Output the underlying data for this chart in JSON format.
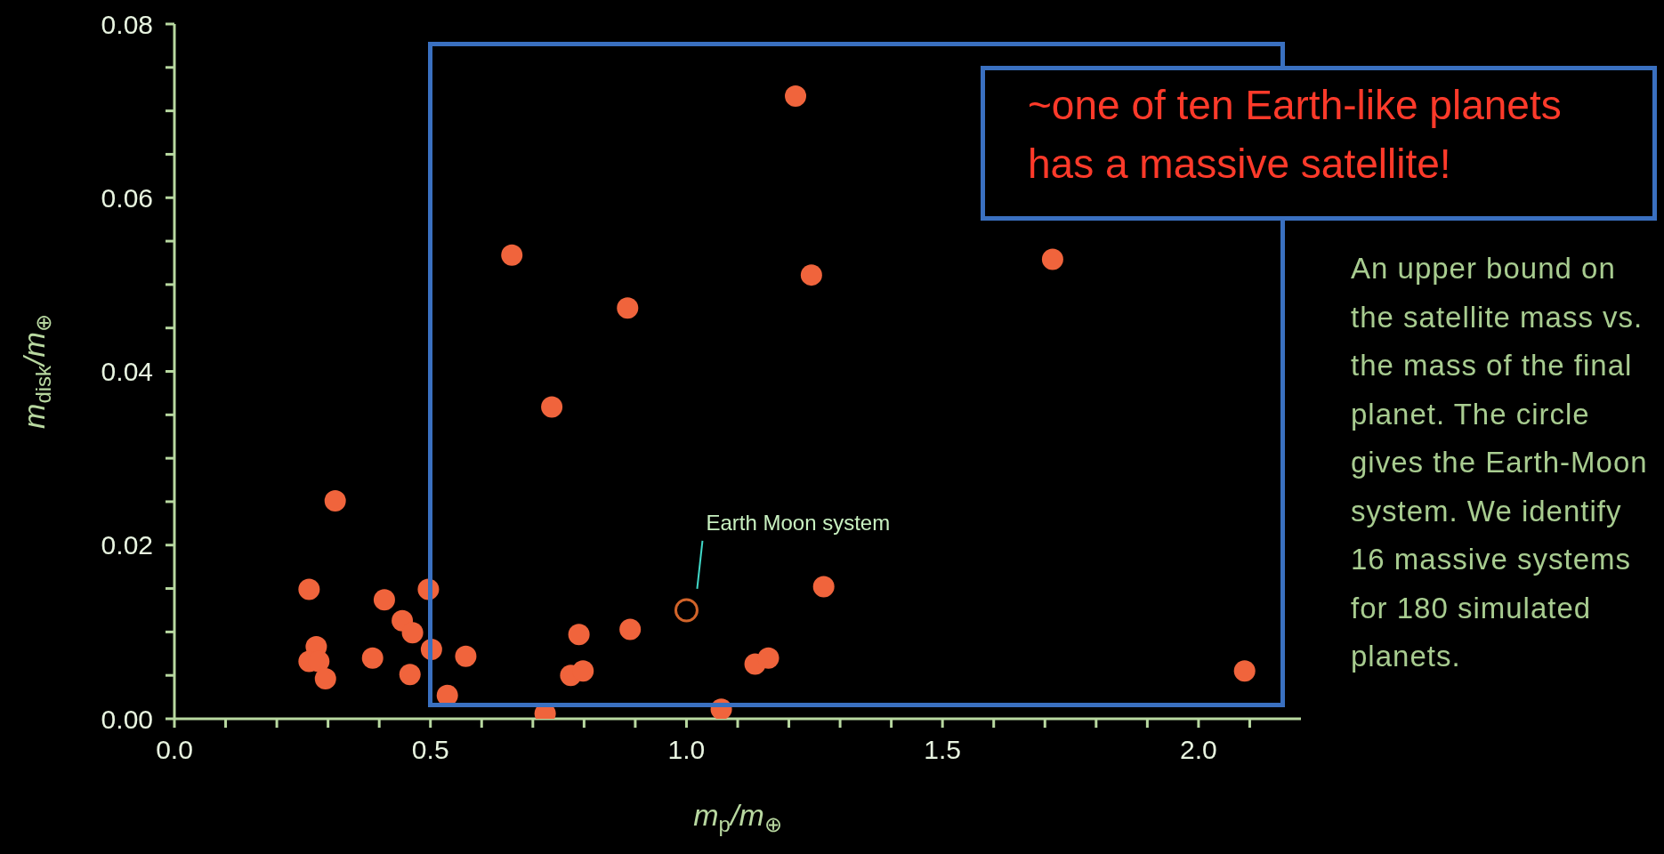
{
  "chart_data": {
    "type": "scatter",
    "xlabel": "m$_{p}$/m$_{⊕}$",
    "ylabel": "m$_{disk}$/m$_{⊕}$",
    "xlim": [
      0,
      2.2
    ],
    "xticks": [
      {
        "value": 0,
        "label": "0.0"
      },
      {
        "value": 0.1,
        "label": null
      },
      {
        "value": 0.2,
        "label": null
      },
      {
        "value": 0.3,
        "label": null
      },
      {
        "value": 0.4,
        "label": null
      },
      {
        "value": 0.5,
        "label": "0.5"
      },
      {
        "value": 0.6,
        "label": null
      },
      {
        "value": 0.7,
        "label": null
      },
      {
        "value": 0.8,
        "label": null
      },
      {
        "value": 0.9,
        "label": null
      },
      {
        "value": 1.0,
        "label": "1.0"
      },
      {
        "value": 1.1,
        "label": null
      },
      {
        "value": 1.2,
        "label": null
      },
      {
        "value": 1.3,
        "label": null
      },
      {
        "value": 1.4,
        "label": null
      },
      {
        "value": 1.5,
        "label": "1.5"
      },
      {
        "value": 1.6,
        "label": null
      },
      {
        "value": 1.7,
        "label": null
      },
      {
        "value": 1.8,
        "label": null
      },
      {
        "value": 1.9,
        "label": null
      },
      {
        "value": 2.0,
        "label": "2.0"
      },
      {
        "value": 2.1,
        "label": null
      }
    ],
    "ylim": [
      0,
      0.08
    ],
    "yticks": [
      {
        "value": 0,
        "label": "0.00"
      },
      {
        "value": 0.005,
        "label": null
      },
      {
        "value": 0.01,
        "label": null
      },
      {
        "value": 0.015,
        "label": null
      },
      {
        "value": 0.02,
        "label": "0.02"
      },
      {
        "value": 0.025,
        "label": null
      },
      {
        "value": 0.03,
        "label": null
      },
      {
        "value": 0.035,
        "label": null
      },
      {
        "value": 0.04,
        "label": "0.04"
      },
      {
        "value": 0.045,
        "label": null
      },
      {
        "value": 0.05,
        "label": null
      },
      {
        "value": 0.055,
        "label": null
      },
      {
        "value": 0.06,
        "label": "0.06"
      },
      {
        "value": 0.065,
        "label": null
      },
      {
        "value": 0.07,
        "label": null
      },
      {
        "value": 0.075,
        "label": null
      },
      {
        "value": 0.08,
        "label": "0.08"
      }
    ],
    "grid": false,
    "legend": false,
    "marker": "circle",
    "series": [
      {
        "color": "#f0643c",
        "x": [
          0.263,
          0.314,
          0.277,
          0.263,
          0.282,
          0.295,
          0.387,
          0.41,
          0.445,
          0.465,
          0.46,
          0.496,
          0.502,
          0.533,
          0.569,
          0.659,
          0.737,
          0.724,
          0.774,
          0.798,
          0.79,
          0.885,
          0.89,
          1.068,
          1.134,
          1.16,
          1.213,
          1.244,
          1.268,
          1.715,
          2.09
        ],
        "values": [
          0.0149,
          0.0251,
          0.0083,
          0.0066,
          0.0066,
          0.0046,
          0.007,
          0.0137,
          0.0113,
          0.0099,
          0.0051,
          0.0149,
          0.008,
          0.0027,
          0.0072,
          0.0534,
          0.0359,
          0.0006,
          0.005,
          0.0055,
          0.0097,
          0.0473,
          0.0103,
          0.0011,
          0.0063,
          0.007,
          0.0717,
          0.0511,
          0.0152,
          0.0529,
          0.0055
        ]
      },
      {
        "color": "#d2642a",
        "x": [
          1.0
        ],
        "values": [
          0.0125
        ]
      }
    ],
    "annotations": [
      "Earth Moon system",
      "~one of ten Earth-like planets has a massive satellite!",
      "An upper bound on the satellite mass vs. the mass of the final planet. The circle gives the Earth-Moon system. We identify 16 massive systems for 180 simulated planets."
    ]
  }
}
